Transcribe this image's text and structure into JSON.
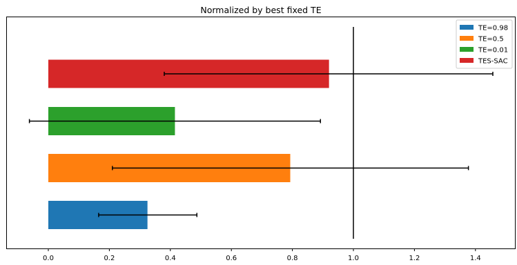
{
  "chart_data": {
    "type": "bar",
    "orientation": "horizontal",
    "title": "Normalized by best fixed TE",
    "xlabel": "",
    "ylabel": "",
    "xlim": [
      -0.14,
      1.52
    ],
    "xticks": [
      0.0,
      0.2,
      0.4,
      0.6,
      0.8,
      1.0,
      1.2,
      1.4
    ],
    "xtick_labels": [
      "0.0",
      "0.2",
      "0.4",
      "0.6",
      "0.8",
      "1.0",
      "1.2",
      "1.4"
    ],
    "reference_line_x": 1.0,
    "legend_position": "top-right",
    "series": [
      {
        "name": "TE=0.98",
        "color": "#1f77b4",
        "value": 0.325,
        "err_low": 0.165,
        "err_high": 0.487
      },
      {
        "name": "TE=0.5",
        "color": "#ff7f0e",
        "value": 0.793,
        "err_low": 0.21,
        "err_high": 1.377
      },
      {
        "name": "TE=0.01",
        "color": "#2ca02c",
        "value": 0.415,
        "err_low": -0.062,
        "err_high": 0.892
      },
      {
        "name": "TES-SAC",
        "color": "#d62728",
        "value": 0.92,
        "err_low": 0.38,
        "err_high": 1.457
      }
    ]
  }
}
